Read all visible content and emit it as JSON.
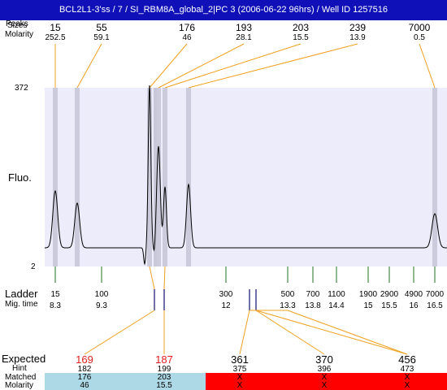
{
  "title": "BCL2L1-3'ss / 7 / SI_RBM8A_global_2|PC 3 (2006-06-22 96hrs) / Well ID 1257516",
  "labels": {
    "peaks": "Peaks",
    "sizes": "Sizes",
    "molarity": "Molarity",
    "fluo": "Fluo.",
    "ladder": "Ladder",
    "mig_time": "Mig. time",
    "expected": "Expected",
    "hint": "Hint",
    "matched": "Matched",
    "molarity_bottom": "Molarity"
  },
  "axis": {
    "ymax": "372",
    "ymin": "2"
  },
  "top_peaks": [
    {
      "size": "15",
      "molarity": "252.5"
    },
    {
      "size": "55",
      "molarity": "59.1"
    },
    {
      "size": "176",
      "molarity": "46"
    },
    {
      "size": "193",
      "molarity": "28.1"
    },
    {
      "size": "203",
      "molarity": "15.5"
    },
    {
      "size": "239",
      "molarity": "13.9"
    },
    {
      "size": "7000",
      "molarity": "0.5"
    }
  ],
  "ladder": [
    {
      "size": "15",
      "time": "8.3"
    },
    {
      "size": "100",
      "time": "9.3"
    },
    {
      "size": "300",
      "time": "12"
    },
    {
      "size": "500",
      "time": "13.3"
    },
    {
      "size": "700",
      "time": "13.8"
    },
    {
      "size": "1100",
      "time": "14.4"
    },
    {
      "size": "1900",
      "time": "15"
    },
    {
      "size": "2900",
      "time": "15.5"
    },
    {
      "size": "4900",
      "time": "16"
    },
    {
      "size": "7000",
      "time": "16.5"
    }
  ],
  "expected": [
    {
      "expected": "169",
      "hint": "182",
      "matched": "176",
      "molarity": "46",
      "status": "matched"
    },
    {
      "expected": "187",
      "hint": "199",
      "matched": "203",
      "molarity": "15.5",
      "status": "matched"
    },
    {
      "expected": "361",
      "hint": "375",
      "matched": "X",
      "molarity": "X",
      "status": "unmatched"
    },
    {
      "expected": "370",
      "hint": "396",
      "matched": "X",
      "molarity": "X",
      "status": "unmatched"
    },
    {
      "expected": "456",
      "hint": "473",
      "matched": "X",
      "molarity": "X",
      "status": "unmatched"
    }
  ],
  "colors": {
    "title_bg": "#1010b8",
    "plot_bg": "#ececfb",
    "band": "#c8c8d8",
    "connector": "#f0a020",
    "ladder_tick": "#207020",
    "marker": "#10106a",
    "matched_bg": "#add8e6",
    "unmatched_bg": "#ff0000",
    "expected_matched_text": "#e02020"
  }
}
